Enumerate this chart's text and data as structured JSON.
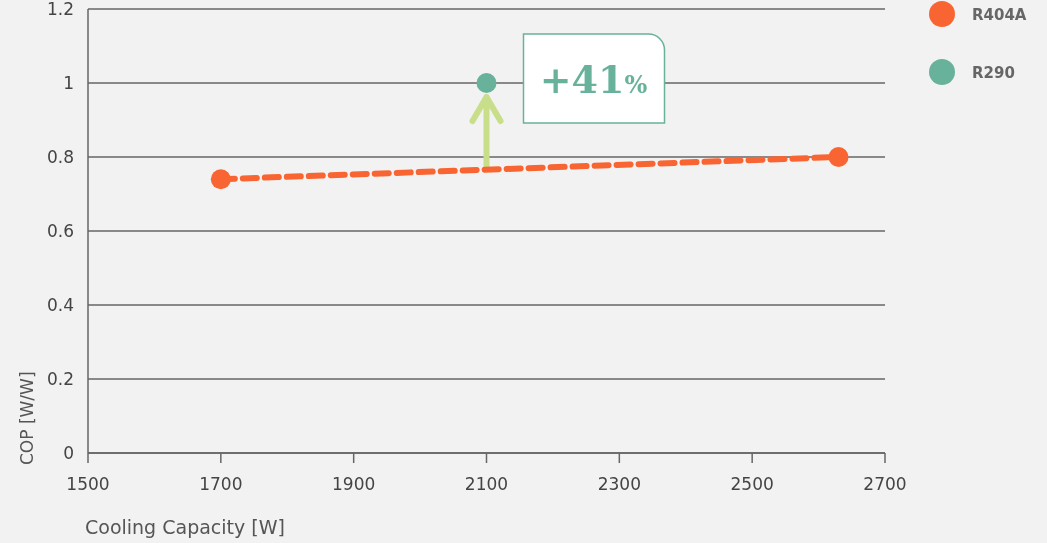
{
  "chart_data": {
    "type": "line",
    "xlabel": "Cooling Capacity [W]",
    "ylabel": "COP [W/W]",
    "xlim": [
      1500,
      2700
    ],
    "xticks": [
      1500,
      1700,
      1900,
      2100,
      2300,
      2500,
      2700
    ],
    "ylim": [
      0,
      1.2
    ],
    "yticks": [
      0,
      0.2,
      0.4,
      0.6,
      0.8,
      1,
      1.2
    ],
    "grid": "y",
    "legend": "top right",
    "marker": "circle",
    "series": [
      {
        "name": "R404A",
        "type": "line",
        "line_style": "dashed",
        "color": "#f96532",
        "x": [
          1700,
          2630
        ],
        "values": [
          0.74,
          0.8
        ]
      },
      {
        "name": "R290",
        "type": "scatter",
        "color": "#68b29b",
        "x": [
          2100
        ],
        "values": [
          1
        ]
      }
    ],
    "annotations": [
      {
        "text": "+41%",
        "x": 2100,
        "y": 1
      }
    ]
  }
}
